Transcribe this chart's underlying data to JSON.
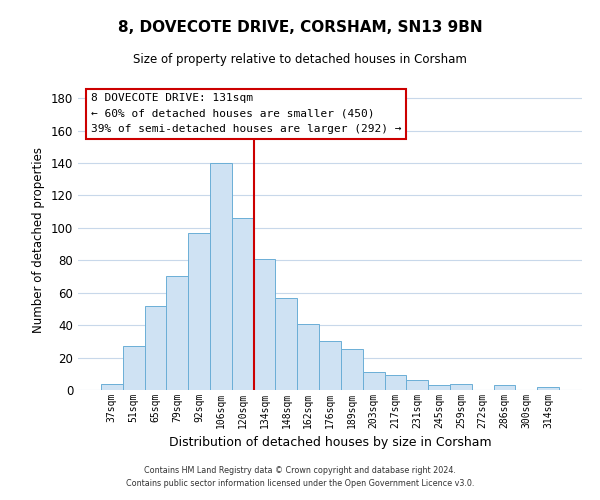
{
  "title": "8, DOVECOTE DRIVE, CORSHAM, SN13 9BN",
  "subtitle": "Size of property relative to detached houses in Corsham",
  "xlabel": "Distribution of detached houses by size in Corsham",
  "ylabel": "Number of detached properties",
  "bar_labels": [
    "37sqm",
    "51sqm",
    "65sqm",
    "79sqm",
    "92sqm",
    "106sqm",
    "120sqm",
    "134sqm",
    "148sqm",
    "162sqm",
    "176sqm",
    "189sqm",
    "203sqm",
    "217sqm",
    "231sqm",
    "245sqm",
    "259sqm",
    "272sqm",
    "286sqm",
    "300sqm",
    "314sqm"
  ],
  "bar_values": [
    4,
    27,
    52,
    70,
    97,
    140,
    106,
    81,
    57,
    41,
    30,
    25,
    11,
    9,
    6,
    3,
    4,
    0,
    3,
    0,
    2
  ],
  "bar_color": "#cfe2f3",
  "bar_edge_color": "#6baed6",
  "vline_x": 6.5,
  "vline_color": "#cc0000",
  "ylim": [
    0,
    185
  ],
  "yticks": [
    0,
    20,
    40,
    60,
    80,
    100,
    120,
    140,
    160,
    180
  ],
  "annotation_title": "8 DOVECOTE DRIVE: 131sqm",
  "annotation_line1": "← 60% of detached houses are smaller (450)",
  "annotation_line2": "39% of semi-detached houses are larger (292) →",
  "annotation_box_color": "#ffffff",
  "annotation_box_edge": "#cc0000",
  "footer1": "Contains HM Land Registry data © Crown copyright and database right 2024.",
  "footer2": "Contains public sector information licensed under the Open Government Licence v3.0.",
  "background_color": "#ffffff",
  "grid_color": "#c8d8ea"
}
